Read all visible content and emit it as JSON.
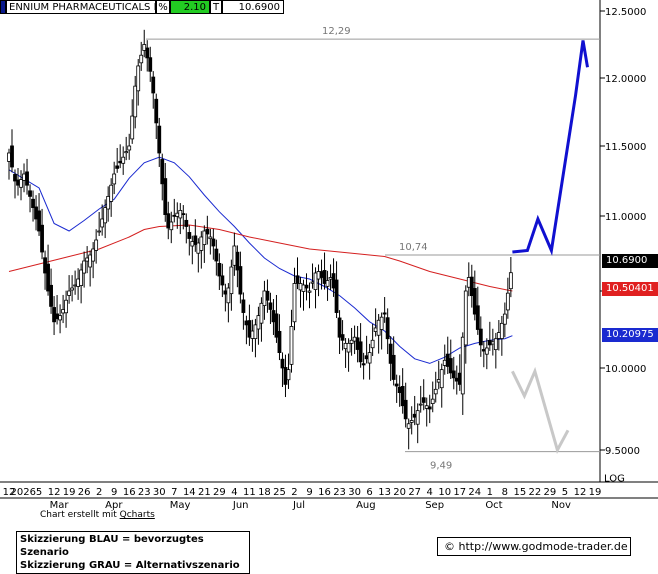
{
  "header": {
    "name": "ENNIUM PHARMACEUTICALS I",
    "pct_label": "%",
    "pct_value": "2.10",
    "t_label": "T",
    "price": "10.6900",
    "accent": "#22cc22"
  },
  "axis": {
    "scale": "LOG",
    "y_ticks": [
      "12.5000",
      "12.0000",
      "11.5000",
      "11.0000",
      "10.5000",
      "10.0000",
      "9.5000"
    ],
    "x_tick_labels": [
      "12",
      "2026",
      "5",
      "12",
      "19",
      "26",
      "2",
      "9",
      "16",
      "23",
      "30",
      "7",
      "14",
      "21",
      "29",
      "4",
      "11",
      "18",
      "25",
      "2",
      "9",
      "16",
      "23",
      "30",
      "6",
      "13",
      "20",
      "27",
      "4",
      "10",
      "17",
      "24",
      "1",
      "8",
      "15",
      "22",
      "29",
      "5",
      "12",
      "19"
    ],
    "months": [
      "Mar",
      "Apr",
      "May",
      "Jun",
      "Jul",
      "Aug",
      "Sep",
      "Oct",
      "Nov"
    ]
  },
  "tags": {
    "last": "10.6900",
    "ma_red": "10.50401",
    "ma_blue": "10.20975"
  },
  "annotations": {
    "high": "12,29",
    "mid": "10,74",
    "low": "9,49"
  },
  "colors": {
    "candles": "#000000",
    "red_ma": "#d42020",
    "blue_ma": "#1a2ad0",
    "blue_scenario": "#1010d0",
    "grey_scenario": "#c8c8c8"
  },
  "credit": {
    "prefix": "Chart erstellt mit ",
    "link": "Qcharts"
  },
  "legend": {
    "line1": "Skizzierung BLAU = bevorzugtes Szenario",
    "line2": "Skizzierung GRAU = Alternativszenario"
  },
  "source": "http://www.godmode-trader.de",
  "chart_data": {
    "type": "line",
    "title": "ENNIUM PHARMACEUTICALS I",
    "y_scale": "log",
    "ylim": [
      9.4,
      12.65
    ],
    "x_range_weeks": [
      0,
      39
    ],
    "series": [
      {
        "kind": "price",
        "points": [
          [
            0,
            11.45
          ],
          [
            0.5,
            11.2
          ],
          [
            1,
            11.3
          ],
          [
            1.5,
            11.1
          ],
          [
            2,
            10.9
          ],
          [
            2.5,
            10.55
          ],
          [
            3,
            10.3
          ],
          [
            3.5,
            10.35
          ],
          [
            4,
            10.5
          ],
          [
            4.5,
            10.55
          ],
          [
            5,
            10.7
          ],
          [
            5.5,
            10.75
          ],
          [
            6,
            10.9
          ],
          [
            6.5,
            11.1
          ],
          [
            7,
            11.3
          ],
          [
            7.5,
            11.4
          ],
          [
            8,
            11.5
          ],
          [
            8.5,
            12.05
          ],
          [
            9,
            12.25
          ],
          [
            9.5,
            12.0
          ],
          [
            10,
            11.45
          ],
          [
            10.5,
            10.9
          ],
          [
            11,
            11.0
          ],
          [
            11.5,
            11.05
          ],
          [
            12,
            10.85
          ],
          [
            12.5,
            10.8
          ],
          [
            13,
            10.9
          ],
          [
            13.5,
            10.85
          ],
          [
            14,
            10.6
          ],
          [
            14.5,
            10.45
          ],
          [
            15,
            10.8
          ],
          [
            15.5,
            10.4
          ],
          [
            16,
            10.2
          ],
          [
            16.5,
            10.3
          ],
          [
            17,
            10.5
          ],
          [
            17.5,
            10.35
          ],
          [
            18,
            10.1
          ],
          [
            18.5,
            9.85
          ],
          [
            19,
            10.55
          ],
          [
            19.5,
            10.55
          ],
          [
            20,
            10.5
          ],
          [
            20.5,
            10.65
          ],
          [
            21,
            10.55
          ],
          [
            21.5,
            10.6
          ],
          [
            22,
            10.2
          ],
          [
            22.5,
            10.15
          ],
          [
            23,
            10.2
          ],
          [
            23.5,
            10.0
          ],
          [
            24,
            10.1
          ],
          [
            24.5,
            10.3
          ],
          [
            25,
            10.35
          ],
          [
            25.5,
            9.95
          ],
          [
            26,
            9.85
          ],
          [
            26.5,
            9.65
          ],
          [
            27,
            9.7
          ],
          [
            27.5,
            9.8
          ],
          [
            28,
            9.75
          ],
          [
            28.5,
            9.9
          ],
          [
            29,
            10.05
          ],
          [
            29.5,
            9.95
          ],
          [
            30,
            9.9
          ],
          [
            30.5,
            10.65
          ],
          [
            31,
            10.35
          ],
          [
            31.5,
            10.1
          ],
          [
            32,
            10.15
          ],
          [
            32.5,
            10.2
          ],
          [
            33,
            10.35
          ],
          [
            33.5,
            10.69
          ]
        ]
      },
      {
        "name": "10.20975",
        "kind": "ma_blue",
        "points": [
          [
            0,
            11.33
          ],
          [
            2,
            11.2
          ],
          [
            3,
            10.95
          ],
          [
            4,
            10.9
          ],
          [
            5,
            10.97
          ],
          [
            6,
            11.05
          ],
          [
            7,
            11.12
          ],
          [
            8,
            11.27
          ],
          [
            9,
            11.38
          ],
          [
            10,
            11.42
          ],
          [
            11,
            11.38
          ],
          [
            12,
            11.28
          ],
          [
            13,
            11.15
          ],
          [
            14,
            11.03
          ],
          [
            15,
            10.93
          ],
          [
            16,
            10.82
          ],
          [
            17,
            10.72
          ],
          [
            18,
            10.65
          ],
          [
            19,
            10.6
          ],
          [
            20,
            10.58
          ],
          [
            21,
            10.53
          ],
          [
            22,
            10.47
          ],
          [
            23,
            10.39
          ],
          [
            24,
            10.3
          ],
          [
            25,
            10.24
          ],
          [
            26,
            10.14
          ],
          [
            27,
            10.06
          ],
          [
            28,
            10.03
          ],
          [
            29,
            10.07
          ],
          [
            30,
            10.13
          ],
          [
            31,
            10.16
          ],
          [
            32,
            10.18
          ],
          [
            33,
            10.19
          ],
          [
            33.5,
            10.21
          ]
        ]
      },
      {
        "name": "10.50401",
        "kind": "ma_red",
        "points": [
          [
            0,
            10.63
          ],
          [
            2,
            10.68
          ],
          [
            4,
            10.73
          ],
          [
            6,
            10.78
          ],
          [
            8,
            10.86
          ],
          [
            9,
            10.91
          ],
          [
            10,
            10.93
          ],
          [
            12,
            10.94
          ],
          [
            14,
            10.91
          ],
          [
            16,
            10.86
          ],
          [
            18,
            10.82
          ],
          [
            20,
            10.78
          ],
          [
            22,
            10.76
          ],
          [
            24,
            10.74
          ],
          [
            25,
            10.73
          ],
          [
            26,
            10.7
          ],
          [
            28,
            10.63
          ],
          [
            30,
            10.58
          ],
          [
            32,
            10.53
          ],
          [
            33.5,
            10.5
          ]
        ]
      },
      {
        "name": "BLAU",
        "kind": "scenario_blue",
        "points": [
          [
            33.5,
            10.76
          ],
          [
            34.5,
            10.77
          ],
          [
            35.2,
            10.98
          ],
          [
            36.1,
            10.77
          ],
          [
            37.7,
            11.87
          ],
          [
            38.2,
            12.28
          ],
          [
            38.5,
            12.08
          ]
        ]
      },
      {
        "name": "GRAU",
        "kind": "scenario_grey",
        "points": [
          [
            33.5,
            9.98
          ],
          [
            34.3,
            9.83
          ],
          [
            35,
            9.98
          ],
          [
            36.5,
            9.5
          ],
          [
            37.2,
            9.62
          ]
        ]
      }
    ],
    "levels": [
      {
        "label": "12,29",
        "value": 12.29
      },
      {
        "label": "10,74",
        "value": 10.74
      },
      {
        "label": "9,49",
        "value": 9.49
      }
    ],
    "grid": false,
    "legend_position": "bottom-left"
  }
}
